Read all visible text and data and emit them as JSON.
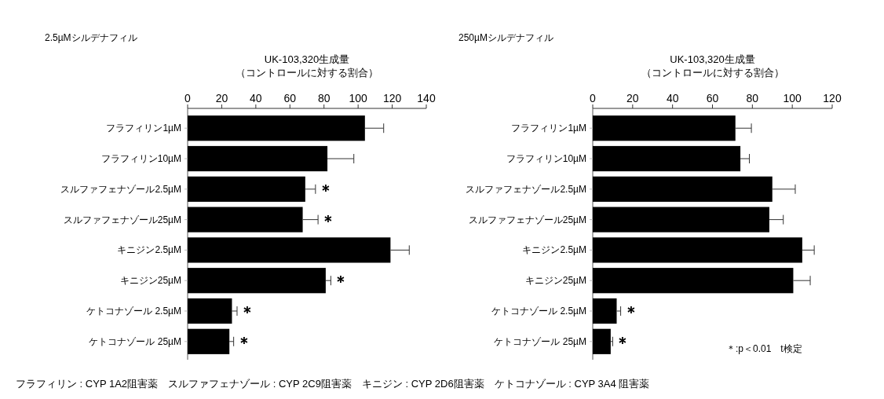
{
  "chart_data": [
    {
      "type": "bar",
      "orientation": "horizontal",
      "title": "2.5µMシルデナフィル",
      "xlabel": "UK-103,320生成量（コントロールに対する割合）",
      "categories": [
        "フラフィリン1µM",
        "フラフィリン10µM",
        "スルファフェナゾール2.5µM",
        "スルファフェナゾール25µM",
        "キニジン2.5µM",
        "キニジン25µM",
        "ケトコナゾール 2.5µM",
        "ケトコナゾール 25µM"
      ],
      "series": [
        {
          "color": "#000000",
          "values": [
            104,
            82,
            69,
            67.5,
            119,
            81,
            26,
            24.5
          ],
          "errors": [
            11,
            15.5,
            6,
            9,
            11,
            3,
            3,
            2.5
          ]
        }
      ],
      "xlim": [
        0,
        140
      ],
      "xticks": [
        0,
        20,
        40,
        60,
        80,
        100,
        120,
        140
      ],
      "annotations": [
        {
          "text": "＊",
          "x": 75,
          "y": "スルファフェナゾール2.5µM"
        },
        {
          "text": "＊",
          "x": 76.5,
          "y": "スルファフェナゾール25µM"
        },
        {
          "text": "＊",
          "x": 84,
          "y": "キニジン25µM"
        },
        {
          "text": "＊",
          "x": 29,
          "y": "ケトコナゾール 2.5µM"
        },
        {
          "text": "＊",
          "x": 27,
          "y": "ケトコナゾール 25µM"
        },
        "フラフィリン : CYP 1A2阻害薬　スルファフェナゾール : CYP 2C9阻害薬　キニジン : CYP 2D6阻害薬　ケトコナゾール : CYP 3A4 阻害薬"
      ]
    },
    {
      "type": "bar",
      "orientation": "horizontal",
      "title": "250µMシルデナフィル",
      "xlabel": "UK-103,320生成量（コントロールに対する割合）",
      "categories": [
        "フラフィリン1µM",
        "フラフィリン10µM",
        "スルファフェナゾール2.5µM",
        "スルファフェナゾール25µM",
        "キニジン2.5µM",
        "キニジン25µM",
        "ケトコナゾール 2.5µM",
        "ケトコナゾール 25µM"
      ],
      "series": [
        {
          "color": "#000000",
          "values": [
            71.5,
            74,
            90,
            88.5,
            105,
            100.5,
            12,
            9
          ],
          "errors": [
            8,
            4.5,
            11.5,
            7,
            6,
            8.5,
            2,
            1
          ]
        }
      ],
      "xlim": [
        0,
        120
      ],
      "xticks": [
        0,
        20,
        40,
        60,
        80,
        100,
        120
      ],
      "annotations": [
        {
          "text": "＊",
          "x": 14,
          "y": "ケトコナゾール 2.5µM"
        },
        {
          "text": "＊",
          "x": 10,
          "y": "ケトコナゾール 25µM"
        },
        "＊:p＜0.01　t検定"
      ]
    }
  ]
}
